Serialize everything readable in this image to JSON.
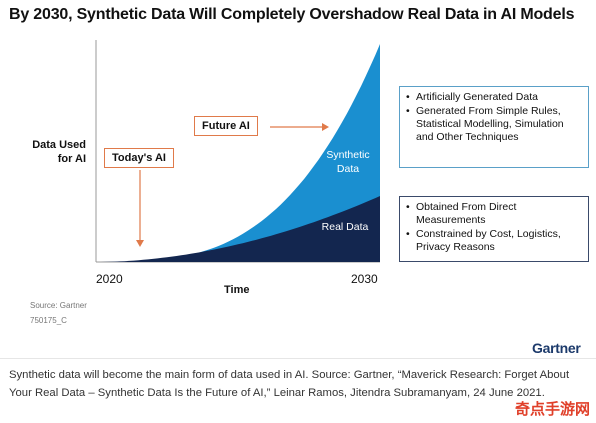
{
  "page": {
    "title": "By 2030, Synthetic Data Will Completely Overshadow Real Data in AI Models",
    "source": "Source: Gartner",
    "code": "750175_C",
    "brand": "Gartner",
    "caption": "Synthetic data will become the main form of data used in AI. Source: Gartner, “Maverick Research: Forget About Your Real Data – Synthetic Data Is the Future of AI,” Leinar Ramos, Jitendra Subramanyam, 24 June 2021.",
    "watermark": "奇点手游网"
  },
  "chart_data": {
    "type": "area",
    "title": "By 2030, Synthetic Data Will Completely Overshadow Real Data in AI Models",
    "xlabel": "Time",
    "ylabel": "Data Used for AI",
    "x_ticks": [
      "2020",
      "2030"
    ],
    "series": [
      {
        "name": "Real Data",
        "color": "#13264f"
      },
      {
        "name": "Synthetic Data",
        "color": "#1a8fd0"
      }
    ],
    "annotations": [
      {
        "text": "Today's AI"
      },
      {
        "text": "Future AI"
      }
    ],
    "legend": [
      {
        "series": "Synthetic Data",
        "bullets": [
          "Artificially Generated Data",
          "Generated From Simple Rules, Statistical Modelling, Simulation and Other Techniques"
        ]
      },
      {
        "series": "Real Data",
        "bullets": [
          "Obtained From Direct Measurements",
          "Constrained by Cost, Logistics, Privacy Reasons"
        ]
      }
    ],
    "grid": false
  },
  "labels": {
    "synthetic_area": "Synthetic Data",
    "real_area": "Real Data",
    "ylabel_line1": "Data Used",
    "ylabel_line2": "for AI"
  },
  "colors": {
    "synthetic": "#1a8fd0",
    "real": "#13264f",
    "annotation": "#e07a4a",
    "axis": "#999999"
  }
}
